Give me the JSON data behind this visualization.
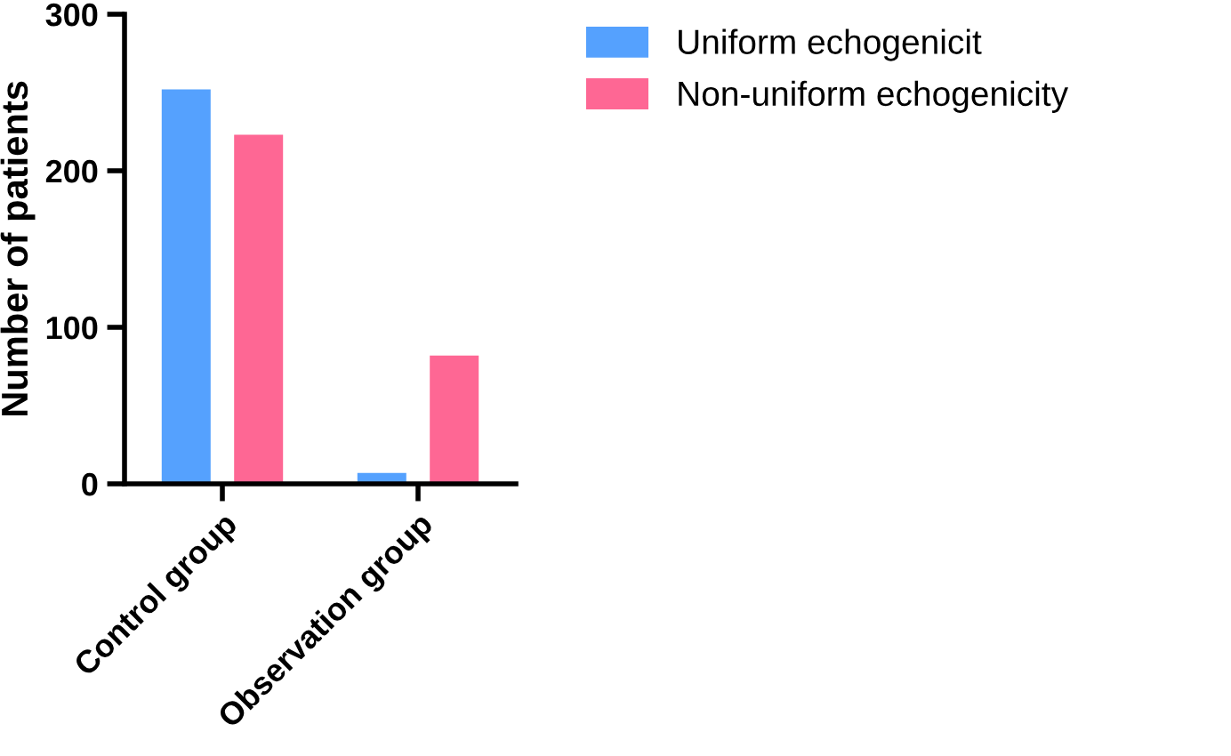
{
  "chart_data": {
    "type": "bar",
    "ylabel": "Number of patients",
    "categories": [
      "Control group",
      "Observation group"
    ],
    "series": [
      {
        "name": "Uniform echogenicit",
        "color": "#55a1fe",
        "values": [
          252,
          7
        ]
      },
      {
        "name": "Non-uniform echogenicity",
        "color": "#fe6794",
        "values": [
          223,
          82
        ]
      }
    ],
    "ylim": [
      0,
      300
    ],
    "yticks": [
      0,
      100,
      200,
      300
    ],
    "grid": false,
    "legend": "top right"
  }
}
